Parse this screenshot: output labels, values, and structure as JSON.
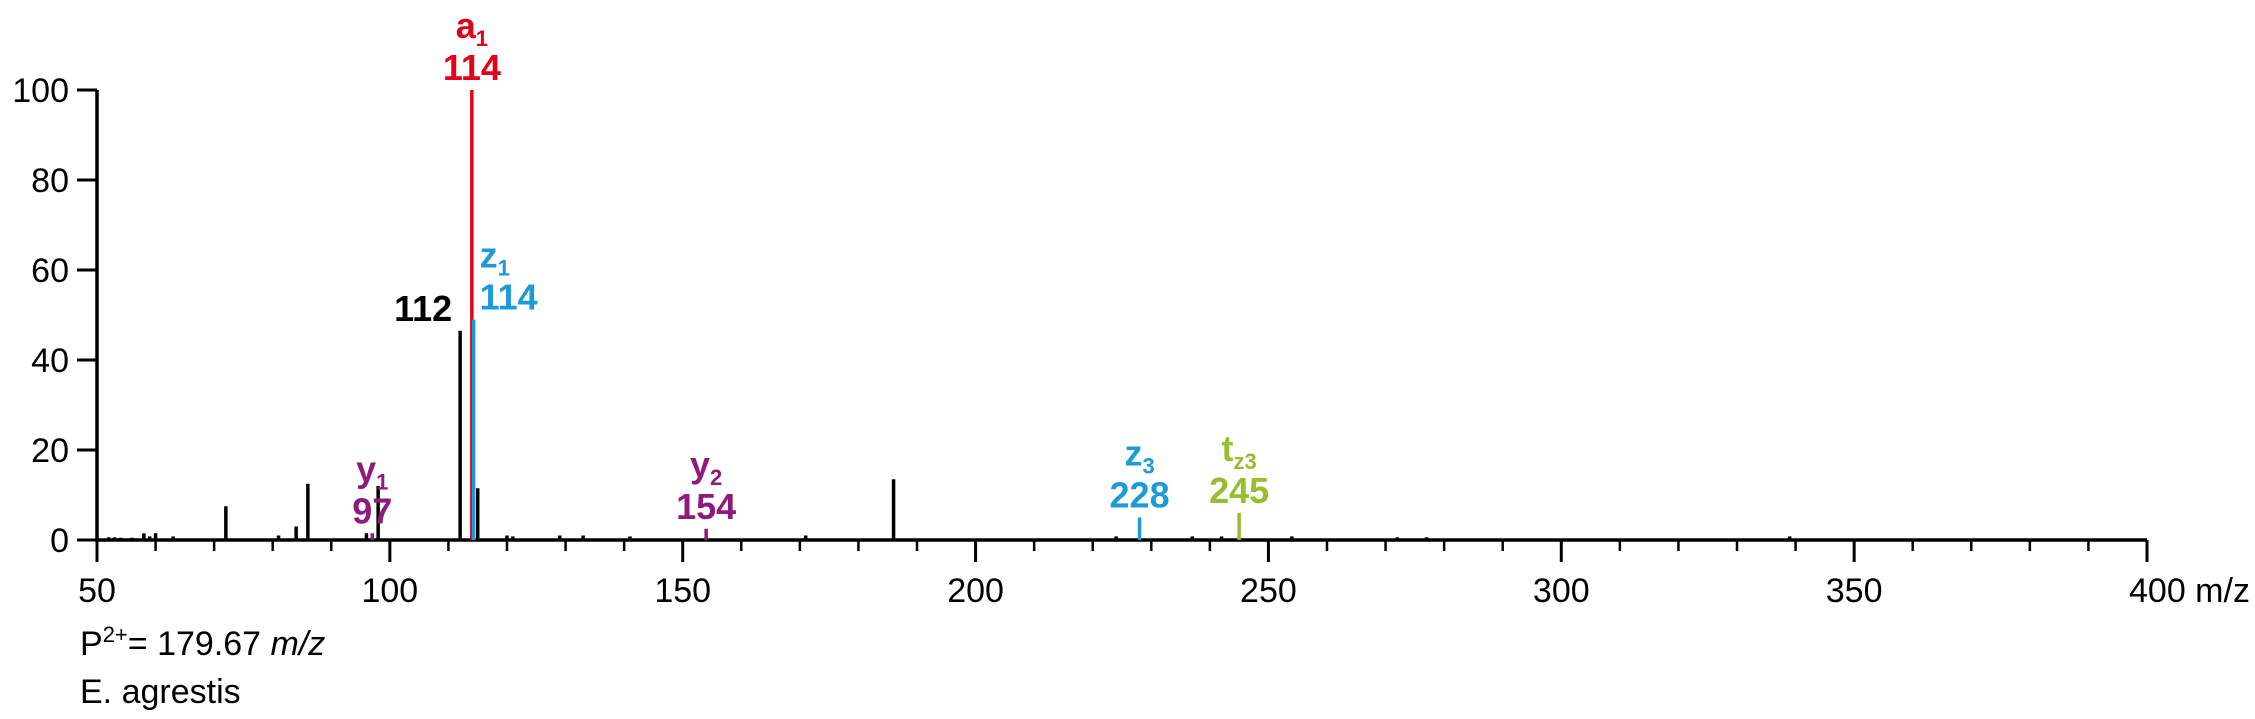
{
  "chart_data": {
    "type": "bar",
    "title": "",
    "xlabel": "",
    "ylabel": "",
    "xlim": [
      50,
      400
    ],
    "ylim": [
      0,
      100
    ],
    "x_ticks": [
      50,
      100,
      150,
      200,
      250,
      300,
      350,
      400
    ],
    "x_tick_labels": [
      "50",
      "100",
      "150",
      "200",
      "250",
      "300",
      "350",
      "400 m/z"
    ],
    "x_minor_tick_step": 10,
    "y_ticks": [
      0,
      20,
      40,
      60,
      80,
      100
    ],
    "y_tick_labels": [
      "0",
      "20",
      "40",
      "60",
      "80",
      "100"
    ],
    "grid": false,
    "legend": "none",
    "colors": {
      "unassigned": "#000000",
      "a_ion": "#e3001b",
      "z_ion": "#1e9bd7",
      "y_ion": "#8e1a7e",
      "t_ion": "#95bf2f"
    },
    "peaks": [
      {
        "mz": 52,
        "intensity": 0.6,
        "ion": "unassigned"
      },
      {
        "mz": 53,
        "intensity": 0.6,
        "ion": "unassigned"
      },
      {
        "mz": 54,
        "intensity": 0.5,
        "ion": "unassigned"
      },
      {
        "mz": 56,
        "intensity": 0.5,
        "ion": "unassigned"
      },
      {
        "mz": 58,
        "intensity": 1.5,
        "ion": "unassigned"
      },
      {
        "mz": 59,
        "intensity": 0.8,
        "ion": "unassigned"
      },
      {
        "mz": 60,
        "intensity": 1.5,
        "ion": "unassigned"
      },
      {
        "mz": 63,
        "intensity": 0.8,
        "ion": "unassigned"
      },
      {
        "mz": 72,
        "intensity": 7.5,
        "ion": "unassigned"
      },
      {
        "mz": 81,
        "intensity": 1,
        "ion": "unassigned"
      },
      {
        "mz": 84,
        "intensity": 3,
        "ion": "unassigned"
      },
      {
        "mz": 86,
        "intensity": 12.5,
        "ion": "unassigned"
      },
      {
        "mz": 96,
        "intensity": 1.5,
        "ion": "unassigned"
      },
      {
        "mz": 97,
        "intensity": 1.5,
        "ion": "y"
      },
      {
        "mz": 98,
        "intensity": 12,
        "ion": "unassigned"
      },
      {
        "mz": 112,
        "intensity": 46.5,
        "ion": "unassigned"
      },
      {
        "mz": 114,
        "intensity": 100,
        "ion": "a"
      },
      {
        "mz": 114.3,
        "intensity": 49,
        "ion": "z"
      },
      {
        "mz": 115,
        "intensity": 11.5,
        "ion": "unassigned"
      },
      {
        "mz": 120,
        "intensity": 1,
        "ion": "unassigned"
      },
      {
        "mz": 121,
        "intensity": 0.8,
        "ion": "unassigned"
      },
      {
        "mz": 129,
        "intensity": 1,
        "ion": "unassigned"
      },
      {
        "mz": 133,
        "intensity": 1,
        "ion": "unassigned"
      },
      {
        "mz": 141,
        "intensity": 0.8,
        "ion": "unassigned"
      },
      {
        "mz": 154,
        "intensity": 2.5,
        "ion": "y"
      },
      {
        "mz": 171,
        "intensity": 1,
        "ion": "unassigned"
      },
      {
        "mz": 186,
        "intensity": 13.5,
        "ion": "unassigned"
      },
      {
        "mz": 224,
        "intensity": 0.8,
        "ion": "unassigned"
      },
      {
        "mz": 228,
        "intensity": 5,
        "ion": "z"
      },
      {
        "mz": 237,
        "intensity": 0.8,
        "ion": "unassigned"
      },
      {
        "mz": 242,
        "intensity": 0.8,
        "ion": "unassigned"
      },
      {
        "mz": 245,
        "intensity": 6,
        "ion": "t"
      },
      {
        "mz": 254,
        "intensity": 0.8,
        "ion": "unassigned"
      },
      {
        "mz": 272,
        "intensity": 0.6,
        "ion": "unassigned"
      },
      {
        "mz": 277,
        "intensity": 0.6,
        "ion": "unassigned"
      },
      {
        "mz": 339,
        "intensity": 0.8,
        "ion": "unassigned"
      }
    ],
    "annotations": [
      {
        "ion": "a",
        "name": "a",
        "sub": "1",
        "value": "114",
        "mz": 114,
        "intensity": 100,
        "align": "middle"
      },
      {
        "ion": "z",
        "name": "z",
        "sub": "1",
        "value": "114",
        "mz": 114.3,
        "intensity": 49,
        "align": "start"
      },
      {
        "ion": "unassigned",
        "name": "",
        "sub": "",
        "value": "112",
        "mz": 112,
        "intensity": 46.5,
        "align": "end"
      },
      {
        "ion": "y",
        "name": "y",
        "sub": "1",
        "value": "97",
        "mz": 97,
        "intensity": 1.5,
        "align": "middle"
      },
      {
        "ion": "y",
        "name": "y",
        "sub": "2",
        "value": "154",
        "mz": 154,
        "intensity": 2.5,
        "align": "middle"
      },
      {
        "ion": "z",
        "name": "z",
        "sub": "3",
        "value": "228",
        "mz": 228,
        "intensity": 5,
        "align": "middle"
      },
      {
        "ion": "t",
        "name": "t",
        "sub": "z3",
        "value": "245",
        "mz": 245,
        "intensity": 6,
        "align": "middle"
      }
    ]
  },
  "notes": {
    "precursor_prefix": "P",
    "precursor_charge": "2+",
    "precursor_value": "= 179.67 ",
    "precursor_unit": "m/z",
    "species": "E. agrestis"
  }
}
